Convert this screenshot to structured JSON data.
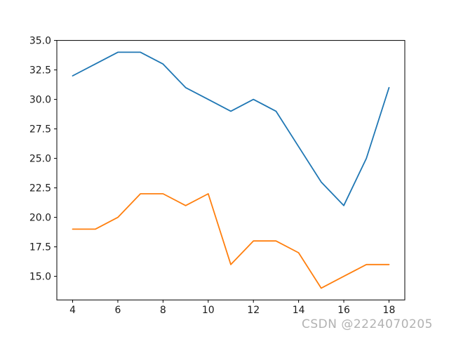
{
  "watermark": "CSDN @2224070205",
  "colors": {
    "background": "#ffffff",
    "spine": "#000000",
    "tick_label": "#1a1a1a",
    "watermark": "#b2b2b2",
    "series_blue": "#1f77b4",
    "series_orange": "#ff7f0e"
  },
  "chart_data": {
    "type": "line",
    "title": "",
    "xlabel": "",
    "ylabel": "",
    "x": [
      4,
      5,
      6,
      7,
      8,
      9,
      10,
      11,
      12,
      13,
      14,
      15,
      16,
      17,
      18
    ],
    "series": [
      {
        "name": "blue-line",
        "color": "#1f77b4",
        "values": [
          32,
          33,
          34,
          34,
          33,
          31,
          30,
          29,
          30,
          29,
          26,
          23,
          21,
          25,
          31
        ]
      },
      {
        "name": "orange-line",
        "color": "#ff7f0e",
        "values": [
          19,
          19,
          20,
          22,
          22,
          21,
          22,
          16,
          18,
          18,
          17,
          14,
          15,
          16,
          16
        ]
      }
    ],
    "xlim": [
      3.3,
      18.7
    ],
    "ylim": [
      13,
      35
    ],
    "xticks": [
      4,
      6,
      8,
      10,
      12,
      14,
      16,
      18
    ],
    "xtick_labels": [
      "4",
      "6",
      "8",
      "10",
      "12",
      "14",
      "16",
      "18"
    ],
    "yticks": [
      15.0,
      17.5,
      20.0,
      22.5,
      25.0,
      27.5,
      30.0,
      32.5,
      35.0
    ],
    "ytick_labels": [
      "15.0",
      "17.5",
      "20.0",
      "22.5",
      "25.0",
      "27.5",
      "30.0",
      "32.5",
      "35.0"
    ],
    "grid": false,
    "legend": null
  }
}
